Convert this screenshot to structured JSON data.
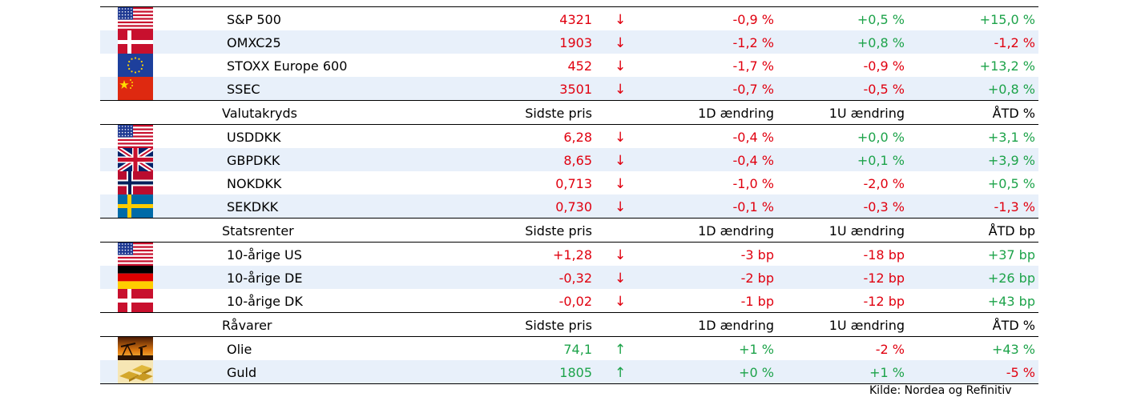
{
  "colors": {
    "negative": "#e0000f",
    "positive": "#1da34a",
    "alt_row": "#e8f0fa"
  },
  "sections": [
    {
      "header": null,
      "rows": [
        {
          "flag": "us-flag-icon",
          "name": "S&P 500",
          "price": "4321",
          "arrow": "↓",
          "trend": "down",
          "d1": "-0,9 %",
          "w1": "+0,5 %",
          "ytd": "+15,0 %"
        },
        {
          "flag": "dk-flag-icon",
          "name": "OMXC25",
          "price": "1903",
          "arrow": "↓",
          "trend": "down",
          "d1": "-1,2 %",
          "w1": "+0,8 %",
          "ytd": "-1,2 %"
        },
        {
          "flag": "eu-flag-icon",
          "name": "STOXX Europe 600",
          "price": "452",
          "arrow": "↓",
          "trend": "down",
          "d1": "-1,7 %",
          "w1": "-0,9 %",
          "ytd": "+13,2 %"
        },
        {
          "flag": "cn-flag-icon",
          "name": "SSEC",
          "price": "3501",
          "arrow": "↓",
          "trend": "down",
          "d1": "-0,7 %",
          "w1": "-0,5 %",
          "ytd": "+0,8 %"
        }
      ]
    },
    {
      "header": {
        "name": "Valutakryds",
        "price": "Sidste pris",
        "d1": "1D ændring",
        "w1": "1U  ændring",
        "ytd": "ÅTD  %"
      },
      "rows": [
        {
          "flag": "us-flag-icon",
          "name": "USDDKK",
          "price": "6,28",
          "arrow": "↓",
          "trend": "down",
          "d1": "-0,4 %",
          "w1": "+0,0 %",
          "ytd": "+3,1 %"
        },
        {
          "flag": "uk-flag-icon",
          "name": "GBPDKK",
          "price": "8,65",
          "arrow": "↓",
          "trend": "down",
          "d1": "-0,4 %",
          "w1": "+0,1 %",
          "ytd": "+3,9 %"
        },
        {
          "flag": "no-flag-icon",
          "name": "NOKDKK",
          "price": "0,713",
          "arrow": "↓",
          "trend": "down",
          "d1": "-1,0 %",
          "w1": "-2,0 %",
          "ytd": "+0,5 %"
        },
        {
          "flag": "se-flag-icon",
          "name": "SEKDKK",
          "price": "0,730",
          "arrow": "↓",
          "trend": "down",
          "d1": "-0,1 %",
          "w1": "-0,3 %",
          "ytd": "-1,3 %"
        }
      ]
    },
    {
      "header": {
        "name": "Statsrenter",
        "price": "Sidste pris",
        "d1": "1D ændring",
        "w1": "1U  ændring",
        "ytd": "ÅTD bp"
      },
      "rows": [
        {
          "flag": "us-flag-icon",
          "name": "10-årige US",
          "price": "+1,28",
          "arrow": "↓",
          "trend": "down",
          "d1": "-3 bp",
          "w1": "-18 bp",
          "ytd": "+37 bp"
        },
        {
          "flag": "de-flag-icon",
          "name": "10-årige DE",
          "price": "-0,32",
          "arrow": "↓",
          "trend": "down",
          "d1": "-2 bp",
          "w1": "-12 bp",
          "ytd": "+26 bp"
        },
        {
          "flag": "dk-flag-icon",
          "name": "10-årige DK",
          "price": "-0,02",
          "arrow": "↓",
          "trend": "down",
          "d1": "-1 bp",
          "w1": "-12 bp",
          "ytd": "+43 bp"
        }
      ]
    },
    {
      "header": {
        "name": "Råvarer",
        "price": "Sidste pris",
        "d1": "1D ændring",
        "w1": "1U  ændring",
        "ytd": "ÅTD  %"
      },
      "rows": [
        {
          "flag": "oil-pump-icon",
          "name": "Olie",
          "price": "74,1",
          "arrow": "↑",
          "trend": "up",
          "d1": "+1 %",
          "w1": "-2 %",
          "ytd": "+43 %"
        },
        {
          "flag": "gold-bars-icon",
          "name": "Guld",
          "price": "1805",
          "arrow": "↑",
          "trend": "up",
          "d1": "+0 %",
          "w1": "+1 %",
          "ytd": "-5 %"
        }
      ]
    }
  ],
  "source": "Kilde: Nordea og Refinitiv"
}
